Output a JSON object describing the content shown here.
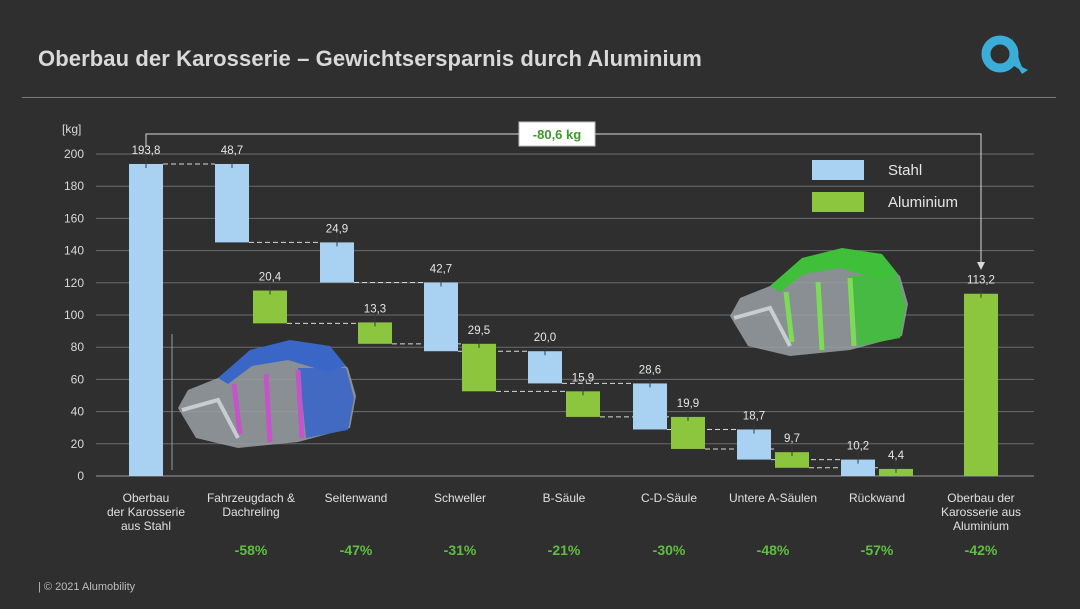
{
  "header": {
    "title": "Oberbau der Karosserie – Gewichtsersparnis durch Aluminium",
    "logo_icon": "alumobility-logo-icon"
  },
  "footer": {
    "text": "|  © 2021 Alumobility"
  },
  "colors": {
    "background": "#2f2f2f",
    "stahl": "#a9d2f2",
    "aluminium": "#8cc63f",
    "savings_text": "#5fbf3f",
    "logo": "#3aaed8"
  },
  "chart_data": {
    "type": "bar",
    "subtype": "waterfall",
    "ylabel": "[kg]",
    "ylim": [
      0,
      200
    ],
    "yticks": [
      0,
      20,
      40,
      60,
      80,
      100,
      120,
      140,
      160,
      180,
      200
    ],
    "grid": true,
    "legend_position": "top-right",
    "legend": [
      {
        "name": "Stahl",
        "color": "#a9d2f2"
      },
      {
        "name": "Aluminium",
        "color": "#8cc63f"
      }
    ],
    "total_savings_label": "-80,6 kg",
    "categories": [
      {
        "label": [
          "Oberbau",
          "der Karosserie",
          "aus Stahl"
        ],
        "savings": ""
      },
      {
        "label": [
          "Fahrzeugdach &",
          "Dachreling"
        ],
        "savings": "-58%"
      },
      {
        "label": [
          "Seitenwand"
        ],
        "savings": "-47%"
      },
      {
        "label": [
          "Schweller"
        ],
        "savings": "-31%"
      },
      {
        "label": [
          "B-Säule"
        ],
        "savings": "-21%"
      },
      {
        "label": [
          "C-D-Säule"
        ],
        "savings": "-30%"
      },
      {
        "label": [
          "Untere A-Säulen"
        ],
        "savings": "-48%"
      },
      {
        "label": [
          "Rückwand"
        ],
        "savings": "-57%"
      },
      {
        "label": [
          "Oberbau der",
          "Karosserie aus",
          "Aluminium"
        ],
        "savings": "-42%"
      }
    ],
    "bars": [
      {
        "cat": 0,
        "series": "Stahl",
        "start": 0,
        "end": 193.8,
        "label": "193,8"
      },
      {
        "cat": 1,
        "series": "Stahl",
        "start": 193.8,
        "end": 145.1,
        "label": "48,7"
      },
      {
        "cat": 1,
        "series": "Aluminium",
        "start": 94.8,
        "end": 115.2,
        "label": "20,4"
      },
      {
        "cat": 2,
        "series": "Stahl",
        "start": 145.1,
        "end": 120.2,
        "label": "24,9"
      },
      {
        "cat": 2,
        "series": "Aluminium",
        "start": 82.1,
        "end": 95.4,
        "label": "13,3"
      },
      {
        "cat": 3,
        "series": "Stahl",
        "start": 120.2,
        "end": 77.5,
        "label": "42,7"
      },
      {
        "cat": 3,
        "series": "Aluminium",
        "start": 52.6,
        "end": 82.1,
        "label": "29,5"
      },
      {
        "cat": 4,
        "series": "Stahl",
        "start": 77.5,
        "end": 57.5,
        "label": "20,0"
      },
      {
        "cat": 4,
        "series": "Aluminium",
        "start": 36.7,
        "end": 52.6,
        "label": "15,9"
      },
      {
        "cat": 5,
        "series": "Stahl",
        "start": 57.5,
        "end": 28.9,
        "label": "28,6"
      },
      {
        "cat": 5,
        "series": "Aluminium",
        "start": 16.8,
        "end": 36.7,
        "label": "19,9"
      },
      {
        "cat": 6,
        "series": "Stahl",
        "start": 28.9,
        "end": 10.2,
        "label": "18,7"
      },
      {
        "cat": 6,
        "series": "Aluminium",
        "start": 5.1,
        "end": 14.8,
        "label": "9,7"
      },
      {
        "cat": 7,
        "series": "Stahl",
        "start": 10.2,
        "end": 0,
        "label": "10,2"
      },
      {
        "cat": 7,
        "series": "Aluminium",
        "start": 0,
        "end": 4.4,
        "label": "4,4"
      },
      {
        "cat": 8,
        "series": "Aluminium",
        "start": 0,
        "end": 113.2,
        "label": "113,2"
      }
    ]
  }
}
